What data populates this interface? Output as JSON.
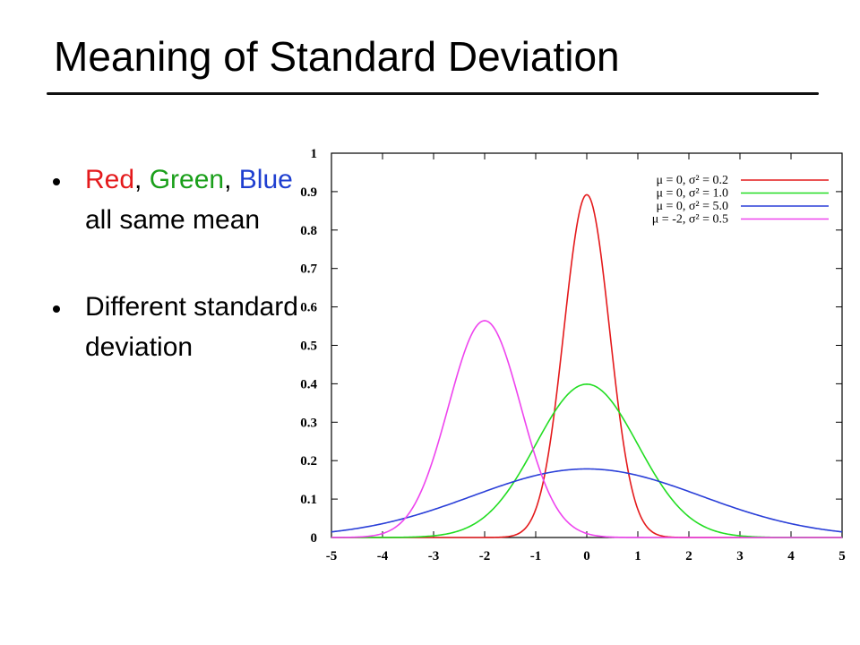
{
  "slide": {
    "title": "Meaning of Standard Deviation"
  },
  "bullets": [
    {
      "parts": [
        {
          "text": "Red",
          "color": "#e41a1c"
        },
        {
          "text": ", ",
          "color": "#000000"
        },
        {
          "text": "Green",
          "color": "#1a9f1a"
        },
        {
          "text": ", ",
          "color": "#000000"
        },
        {
          "text": "Blue",
          "color": "#1f3fd0"
        },
        {
          "text": " all same mean",
          "color": "#000000"
        }
      ]
    },
    {
      "parts": [
        {
          "text": "Different standard deviation",
          "color": "#000000"
        }
      ]
    }
  ],
  "chart_data": {
    "type": "line",
    "title": "",
    "xlabel": "",
    "ylabel": "",
    "xlim": [
      -5,
      5
    ],
    "ylim": [
      0,
      1
    ],
    "xticks": [
      "-5",
      "-4",
      "-3",
      "-2",
      "-1",
      "0",
      "1",
      "2",
      "3",
      "4",
      "5"
    ],
    "yticks": [
      "0",
      "0.1",
      "0.2",
      "0.3",
      "0.4",
      "0.5",
      "0.6",
      "0.7",
      "0.8",
      "0.9",
      "1"
    ],
    "grid": false,
    "legend_position": "top-right",
    "series": [
      {
        "name": "μ = 0, σ² = 0.2",
        "mu": 0,
        "variance": 0.2,
        "color": "#e41a1c",
        "x": [
          -5,
          -4,
          -3,
          -2,
          -1,
          -0.5,
          0,
          0.5,
          1,
          2,
          3,
          4,
          5
        ],
        "y": [
          0,
          0,
          0,
          0,
          0.073,
          0.478,
          0.892,
          0.478,
          0.073,
          0,
          0,
          0,
          0
        ]
      },
      {
        "name": "μ = 0, σ² = 1.0",
        "mu": 0,
        "variance": 1.0,
        "color": "#22dd22",
        "x": [
          -5,
          -4,
          -3,
          -2,
          -1,
          0,
          1,
          2,
          3,
          4,
          5
        ],
        "y": [
          0,
          0,
          0.004,
          0.054,
          0.242,
          0.399,
          0.242,
          0.054,
          0.004,
          0,
          0
        ]
      },
      {
        "name": "μ = 0, σ² = 5.0",
        "mu": 0,
        "variance": 5.0,
        "color": "#2a3fd8",
        "x": [
          -5,
          -4,
          -3,
          -2,
          -1,
          0,
          1,
          2,
          3,
          4,
          5
        ],
        "y": [
          0.015,
          0.036,
          0.072,
          0.119,
          0.161,
          0.178,
          0.161,
          0.119,
          0.072,
          0.036,
          0.015
        ]
      },
      {
        "name": "μ = -2, σ² = 0.5",
        "mu": -2,
        "variance": 0.5,
        "color": "#ee44ee",
        "x": [
          -5,
          -4,
          -3,
          -2,
          -1,
          0,
          1,
          2,
          3,
          4,
          5
        ],
        "y": [
          0,
          0.01,
          0.208,
          0.564,
          0.208,
          0.01,
          0,
          0,
          0,
          0,
          0
        ]
      }
    ]
  }
}
